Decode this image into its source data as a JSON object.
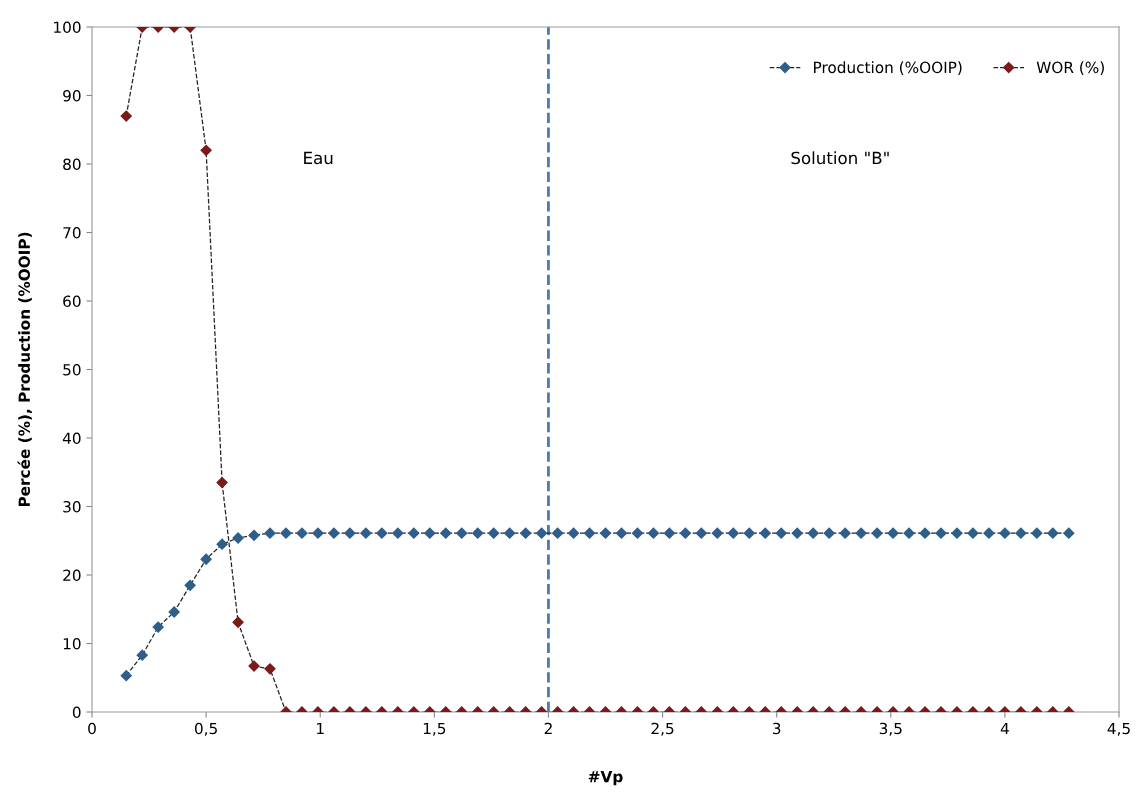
{
  "chart_data": {
    "type": "line",
    "xlabel": "#Vp",
    "ylabel": "Percée (%), Production (%OOIP)",
    "x": [
      0.15,
      0.22,
      0.29,
      0.36,
      0.43,
      0.5,
      0.57,
      0.64,
      0.71,
      0.78,
      0.85,
      0.92,
      0.99,
      1.06,
      1.13,
      1.2,
      1.27,
      1.34,
      1.41,
      1.48,
      1.55,
      1.62,
      1.69,
      1.76,
      1.83,
      1.9,
      1.97,
      2.04,
      2.11,
      2.18,
      2.25,
      2.32,
      2.39,
      2.46,
      2.53,
      2.6,
      2.67,
      2.74,
      2.81,
      2.88,
      2.95,
      3.02,
      3.09,
      3.16,
      3.23,
      3.3,
      3.37,
      3.44,
      3.51,
      3.58,
      3.65,
      3.72,
      3.79,
      3.86,
      3.93,
      4.0,
      4.07,
      4.14,
      4.21,
      4.28
    ],
    "series": [
      {
        "name": "Production (%OOIP)",
        "color": "#2e5f8a",
        "values": [
          5.3,
          8.3,
          12.4,
          14.6,
          18.5,
          22.3,
          24.5,
          25.4,
          25.8,
          26.1,
          26.1,
          26.1,
          26.1,
          26.1,
          26.1,
          26.1,
          26.1,
          26.1,
          26.1,
          26.1,
          26.1,
          26.1,
          26.1,
          26.1,
          26.1,
          26.1,
          26.1,
          26.1,
          26.1,
          26.1,
          26.1,
          26.1,
          26.1,
          26.1,
          26.1,
          26.1,
          26.1,
          26.1,
          26.1,
          26.1,
          26.1,
          26.1,
          26.1,
          26.1,
          26.1,
          26.1,
          26.1,
          26.1,
          26.1,
          26.1,
          26.1,
          26.1,
          26.1,
          26.1,
          26.1,
          26.1,
          26.1,
          26.1,
          26.1,
          26.1
        ]
      },
      {
        "name": "WOR (%)",
        "color": "#7b1a1a",
        "values": [
          87,
          100,
          100,
          100,
          100,
          82,
          33.5,
          13.1,
          6.7,
          6.3,
          0,
          0,
          0,
          0,
          0,
          0,
          0,
          0,
          0,
          0,
          0,
          0,
          0,
          0,
          0,
          0,
          0,
          0,
          0,
          0,
          0,
          0,
          0,
          0,
          0,
          0,
          0,
          0,
          0,
          0,
          0,
          0,
          0,
          0,
          0,
          0,
          0,
          0,
          0,
          0,
          0,
          0,
          0,
          0,
          0,
          0,
          0,
          0,
          0,
          0
        ]
      }
    ],
    "xlim": [
      0,
      4.5
    ],
    "xticks": [
      0,
      {
        "value": 0.5,
        "label": "0,5"
      },
      1,
      {
        "value": 1.5,
        "label": "1,5"
      },
      2,
      {
        "value": 2.5,
        "label": "2,5"
      },
      3,
      {
        "value": 3.5,
        "label": "3,5"
      },
      4,
      {
        "value": 4.5,
        "label": "4,5"
      }
    ],
    "ylim": [
      0,
      100
    ],
    "yticks": [
      0,
      10,
      20,
      30,
      40,
      50,
      60,
      70,
      80,
      90,
      100
    ],
    "ref_lines": [
      {
        "axis": "x",
        "value": 2,
        "color": "#4a7ab0",
        "line_style": "dashed"
      }
    ],
    "annotations": [
      "Eau",
      "Solution \"B\""
    ],
    "marker": "diamond",
    "line_style": "dashed",
    "grid": false,
    "legend": "top right"
  }
}
